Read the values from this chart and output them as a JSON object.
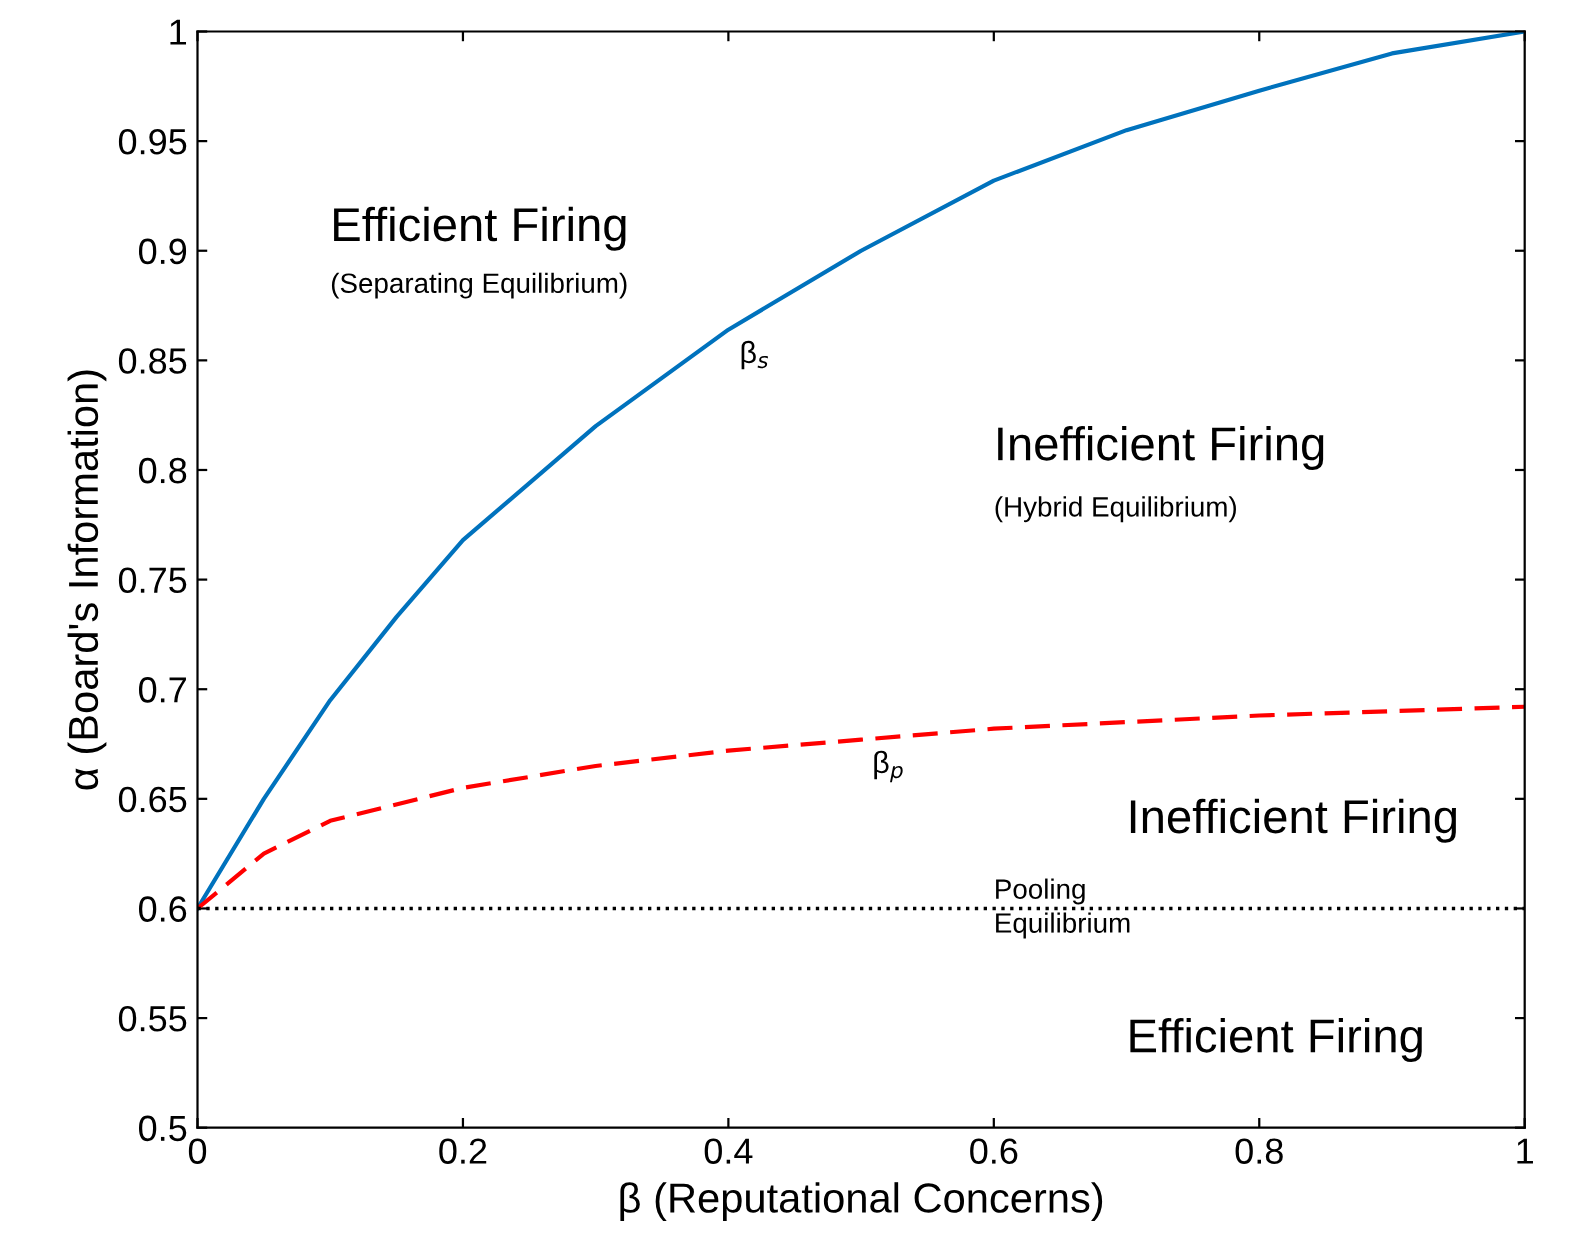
{
  "chart_data": {
    "type": "line",
    "xlabel": "β (Reputational Concerns)",
    "ylabel": "α (Board's Information)",
    "xlim": [
      0,
      1
    ],
    "xticks": [
      0,
      0.2,
      0.4,
      0.6,
      0.8,
      1
    ],
    "ylim": [
      0.5,
      1
    ],
    "yticks": [
      0.5,
      0.55,
      0.6,
      0.65,
      0.7,
      0.75,
      0.8,
      0.85,
      0.9,
      0.95,
      1
    ],
    "grid": false,
    "legend": false,
    "marker": "none",
    "series": [
      {
        "color": "#0072bd",
        "line_style": "solid",
        "x": [
          0,
          0.05,
          0.1,
          0.15,
          0.2,
          0.3,
          0.4,
          0.5,
          0.6,
          0.7,
          0.8,
          0.9,
          1
        ],
        "values": [
          0.6,
          0.65,
          0.695,
          0.733,
          0.768,
          0.82,
          0.864,
          0.9,
          0.932,
          0.955,
          0.973,
          0.99,
          1.0
        ]
      },
      {
        "color": "#ff0000",
        "line_style": "dashed",
        "x": [
          0,
          0.05,
          0.1,
          0.2,
          0.3,
          0.4,
          0.5,
          0.6,
          0.7,
          0.8,
          0.9,
          1
        ],
        "values": [
          0.6,
          0.625,
          0.64,
          0.655,
          0.665,
          0.672,
          0.677,
          0.682,
          0.685,
          0.688,
          0.69,
          0.692
        ]
      }
    ],
    "ref_lines": [
      {
        "axis": "y",
        "value": 0.6,
        "color": "#000000",
        "line_style": "dotted"
      }
    ],
    "annotations": [
      {
        "text": "β$_{s}$",
        "x": 0.4,
        "y": 0.864
      },
      {
        "text": "β$_{p}$",
        "x": 0.5,
        "y": 0.677
      },
      "Efficient Firing",
      "(Separating Equilibrium)",
      "Inefficient Firing",
      "(Hybrid Equilibrium)",
      "Inefficient Firing",
      "Pooling\nEquilibrium",
      "Efficient Firing"
    ]
  }
}
